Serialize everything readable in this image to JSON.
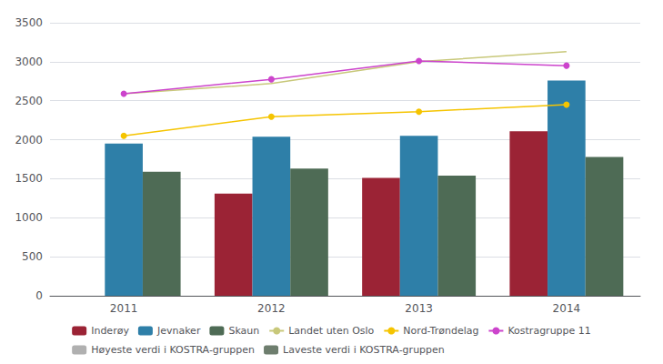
{
  "chart_data": {
    "type": "bar",
    "categories": [
      "2011",
      "2012",
      "2013",
      "2014"
    ],
    "series": [
      {
        "name": "Inderøy",
        "type": "bar",
        "color": "#9b2335",
        "values": [
          0,
          1310,
          1510,
          2110
        ]
      },
      {
        "name": "Jevnaker",
        "type": "bar",
        "color": "#2e7fa8",
        "values": [
          1950,
          2040,
          2050,
          2760
        ]
      },
      {
        "name": "Skaun",
        "type": "bar",
        "color": "#4e6b55",
        "values": [
          1590,
          1630,
          1540,
          1780
        ]
      },
      {
        "name": "Landet uten Oslo",
        "type": "line",
        "color": "#c8c87a",
        "marker": "none",
        "line_style": "solid",
        "values": [
          2590,
          2720,
          3000,
          3130
        ]
      },
      {
        "name": "Nord-Trøndelag",
        "type": "line",
        "color": "#f5c400",
        "marker": "circle",
        "line_style": "solid",
        "values": [
          2050,
          2295,
          2360,
          2450
        ]
      },
      {
        "name": "Kostragruppe 11",
        "type": "line",
        "color": "#cc44cc",
        "marker": "circle",
        "line_style": "solid",
        "values": [
          2590,
          2775,
          3010,
          2950
        ]
      },
      {
        "name": "Høyeste verdi i KOSTRA-gruppen",
        "type": "bar",
        "color": "#b0b0b0",
        "values": [
          null,
          null,
          null,
          null
        ]
      },
      {
        "name": "Laveste verdi i KOSTRA-gruppen",
        "type": "bar",
        "color": "#6e7e6e",
        "values": [
          null,
          null,
          null,
          null
        ]
      }
    ],
    "ylim": [
      0,
      3500
    ],
    "yticks": [
      0,
      500,
      1000,
      1500,
      2000,
      2500,
      3000,
      3500
    ],
    "grid": true,
    "legend": "bottom"
  }
}
